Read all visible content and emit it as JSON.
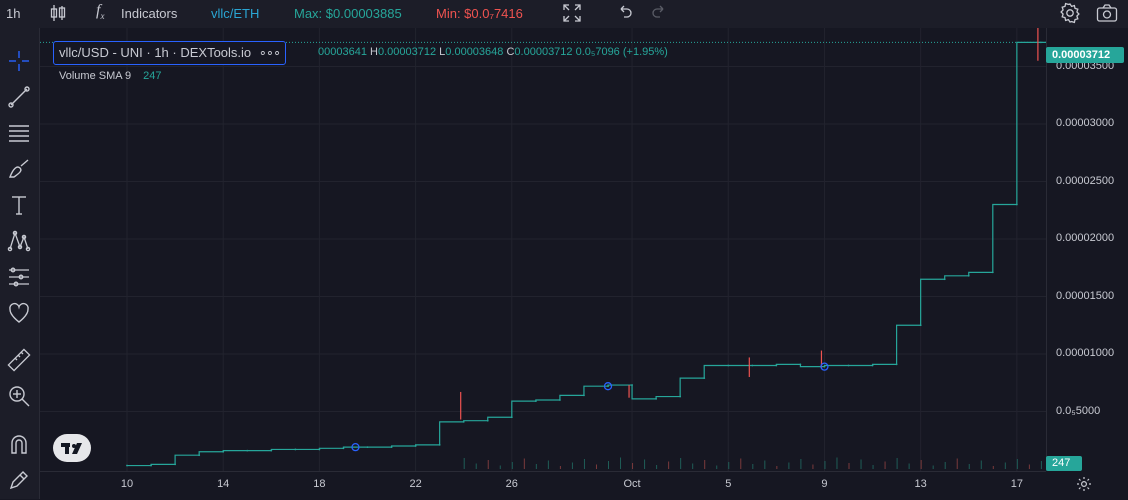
{
  "toolbar": {
    "interval": "1h",
    "indicators_label": "Indicators",
    "pair": "vllc/ETH",
    "max_label": "Max: $0.00003885",
    "min_label": "Min: $0.0₇7416"
  },
  "legend": {
    "title": "vllc/USD - UNI · 1h · DEXTools.io",
    "dots": "∘∘∘",
    "ohlc_prefix": "00003641",
    "h_label": "H",
    "h_value": "0.00003712",
    "l_label": "L",
    "l_value": "0.00003648",
    "c_label": "C",
    "c_value": "0.00003712",
    "change": "0.0₅7096 (+1.95%)"
  },
  "volume": {
    "label": "Volume SMA 9",
    "value": "247"
  },
  "price_axis": {
    "ticks": [
      "0.00003500",
      "0.00003000",
      "0.00002500",
      "0.00002000",
      "0.00001500",
      "0.00001000",
      "0.0₅5000"
    ],
    "last_price": "0.00003712",
    "volume_badge": "247"
  },
  "time_axis": {
    "ticks": [
      "10",
      "14",
      "18",
      "22",
      "26",
      "Oct",
      "5",
      "9",
      "13",
      "17"
    ]
  },
  "colors": {
    "up": "#26a69a",
    "down": "#ef5350",
    "accent": "#2962ff",
    "bg": "#161722"
  },
  "chart_data": {
    "type": "line",
    "x": [
      "10",
      "11",
      "12",
      "13",
      "14",
      "15",
      "16",
      "17",
      "18",
      "19",
      "20",
      "21",
      "22",
      "23",
      "24",
      "25",
      "26",
      "27",
      "28",
      "29",
      "30",
      "Oct",
      "2",
      "3",
      "4",
      "5",
      "6",
      "7",
      "8",
      "9",
      "10",
      "11",
      "12",
      "13",
      "14",
      "15",
      "16",
      "17",
      "18"
    ],
    "series": [
      {
        "values": [
          3e-07,
          3e-07,
          4e-07,
          1.2e-06,
          1.5e-06,
          1.6e-06,
          1.6e-06,
          1.7e-06,
          1.7e-06,
          1.8e-06,
          1.9e-06,
          1.9e-06,
          2e-06,
          2.1e-06,
          4.1e-06,
          4.2e-06,
          4.5e-06,
          5.9e-06,
          6e-06,
          6.4e-06,
          7.2e-06,
          7.3e-06,
          6.1e-06,
          6.3e-06,
          7.9e-06,
          9e-06,
          9e-06,
          9e-06,
          9.1e-06,
          8.9e-06,
          9e-06,
          9e-06,
          9.1e-06,
          1.25e-05,
          1.65e-05,
          1.68e-05,
          1.71e-05,
          2.3e-05,
          3.71e-05
        ]
      }
    ],
    "ylim": [
      0,
      3.95e-05
    ],
    "grid": true
  }
}
